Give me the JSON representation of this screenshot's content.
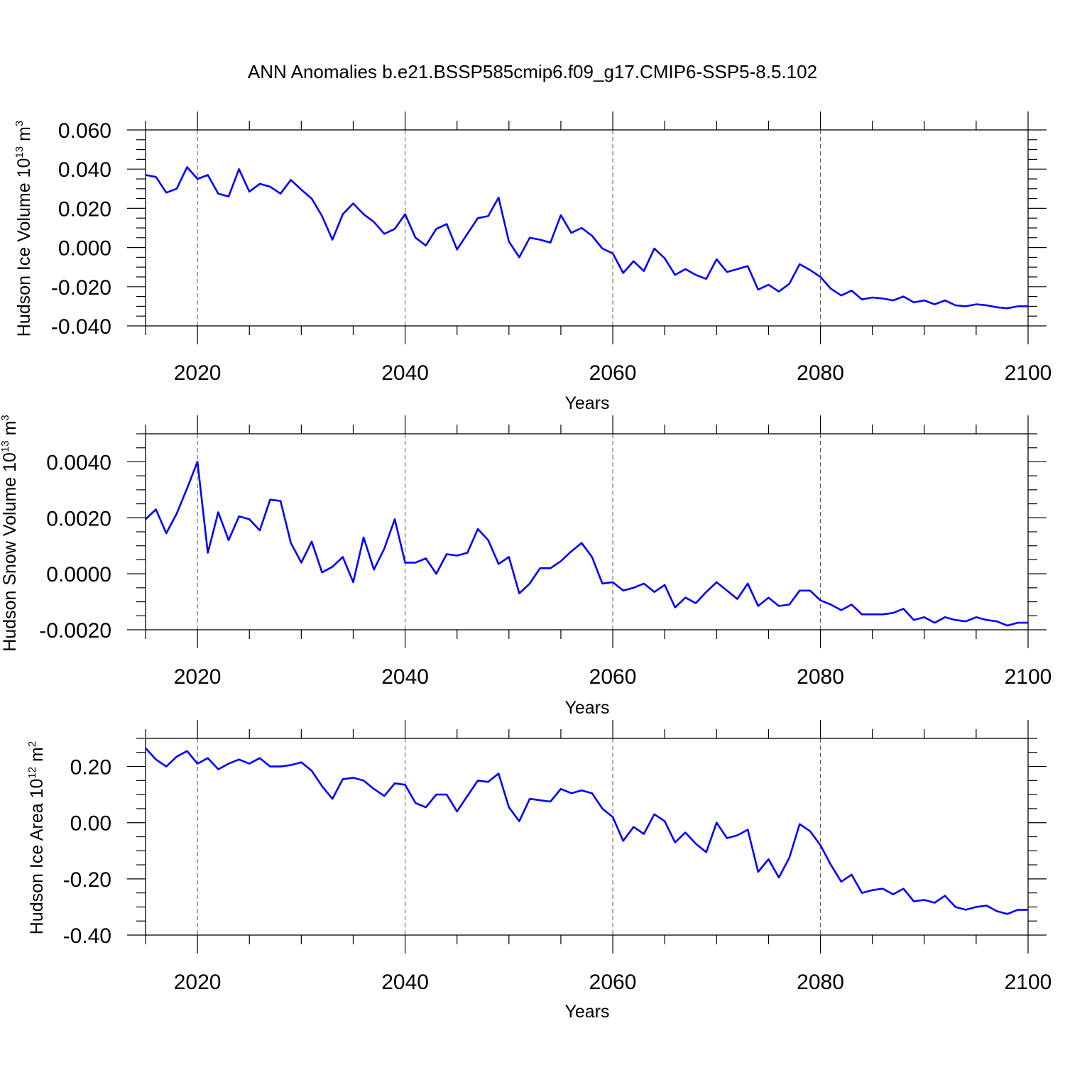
{
  "title": "ANN Anomalies b.e21.BSSP585cmip6.f09_g17.CMIP6-SSP5-8.5.102",
  "line_color": "#0000ff",
  "chart_data": [
    {
      "type": "line",
      "ylabel": "Hudson Ice Volume 10^13 m^3",
      "ylabel_main": "Hudson Ice Volume 10",
      "ylabel_exp": "13",
      "ylabel_unit": " m",
      "ylabel_unit_exp": "3",
      "xlabel": "Years",
      "xlim": [
        2015,
        2100
      ],
      "ylim": [
        -0.04,
        0.06
      ],
      "grid": true,
      "xticks": [
        2020,
        2040,
        2060,
        2080,
        2100
      ],
      "xtick_labels": [
        "2020",
        "2040",
        "2060",
        "2080",
        "2100"
      ],
      "yticks": [
        -0.04,
        -0.02,
        0.0,
        0.02,
        0.04,
        0.06
      ],
      "ytick_labels": [
        "-0.040",
        "-0.020",
        "0.000",
        "0.020",
        "0.040",
        "0.060"
      ],
      "y_minor_step": 0.005,
      "x": [
        2015,
        2016,
        2017,
        2018,
        2019,
        2020,
        2021,
        2022,
        2023,
        2024,
        2025,
        2026,
        2027,
        2028,
        2029,
        2030,
        2031,
        2032,
        2033,
        2034,
        2035,
        2036,
        2037,
        2038,
        2039,
        2040,
        2041,
        2042,
        2043,
        2044,
        2045,
        2046,
        2047,
        2048,
        2049,
        2050,
        2051,
        2052,
        2053,
        2054,
        2055,
        2056,
        2057,
        2058,
        2059,
        2060,
        2061,
        2062,
        2063,
        2064,
        2065,
        2066,
        2067,
        2068,
        2069,
        2070,
        2071,
        2072,
        2073,
        2074,
        2075,
        2076,
        2077,
        2078,
        2079,
        2080,
        2081,
        2082,
        2083,
        2084,
        2085,
        2086,
        2087,
        2088,
        2089,
        2090,
        2091,
        2092,
        2093,
        2094,
        2095,
        2096,
        2097,
        2098,
        2099,
        2100
      ],
      "series": [
        {
          "values": [
            0.037,
            0.036,
            0.028,
            0.03,
            0.041,
            0.035,
            0.037,
            0.0275,
            0.026,
            0.04,
            0.0285,
            0.0325,
            0.031,
            0.0275,
            0.0345,
            0.0295,
            0.025,
            0.016,
            0.004,
            0.017,
            0.0225,
            0.017,
            0.013,
            0.007,
            0.0095,
            0.017,
            0.005,
            0.001,
            0.0095,
            0.012,
            -0.001,
            0.007,
            0.015,
            0.016,
            0.0255,
            0.003,
            -0.005,
            0.005,
            0.004,
            0.0025,
            0.0165,
            0.0075,
            0.01,
            0.006,
            -0.0005,
            -0.003,
            -0.013,
            -0.007,
            -0.012,
            -0.0005,
            -0.0055,
            -0.014,
            -0.011,
            -0.014,
            -0.016,
            -0.006,
            -0.0125,
            -0.011,
            -0.0095,
            -0.0215,
            -0.019,
            -0.0225,
            -0.0185,
            -0.0085,
            -0.0115,
            -0.015,
            -0.021,
            -0.0245,
            -0.022,
            -0.0265,
            -0.0255,
            -0.026,
            -0.027,
            -0.025,
            -0.028,
            -0.027,
            -0.029,
            -0.027,
            -0.0295,
            -0.03,
            -0.029,
            -0.0295,
            -0.0305,
            -0.031,
            -0.03,
            -0.03
          ]
        }
      ]
    },
    {
      "type": "line",
      "ylabel": "Hudson Snow Volume 10^13 m^3",
      "ylabel_main": "Hudson Snow Volume 10",
      "ylabel_exp": "13",
      "ylabel_unit": " m",
      "ylabel_unit_exp": "3",
      "xlabel": "Years",
      "xlim": [
        2015,
        2100
      ],
      "ylim": [
        -0.002,
        0.005
      ],
      "grid": true,
      "xticks": [
        2020,
        2040,
        2060,
        2080,
        2100
      ],
      "xtick_labels": [
        "2020",
        "2040",
        "2060",
        "2080",
        "2100"
      ],
      "yticks": [
        -0.002,
        0.0,
        0.002,
        0.004
      ],
      "ytick_labels": [
        "-0.0020",
        "0.0000",
        "0.0020",
        "0.0040"
      ],
      "y_minor_step": 0.0005,
      "x": [
        2015,
        2016,
        2017,
        2018,
        2019,
        2020,
        2021,
        2022,
        2023,
        2024,
        2025,
        2026,
        2027,
        2028,
        2029,
        2030,
        2031,
        2032,
        2033,
        2034,
        2035,
        2036,
        2037,
        2038,
        2039,
        2040,
        2041,
        2042,
        2043,
        2044,
        2045,
        2046,
        2047,
        2048,
        2049,
        2050,
        2051,
        2052,
        2053,
        2054,
        2055,
        2056,
        2057,
        2058,
        2059,
        2060,
        2061,
        2062,
        2063,
        2064,
        2065,
        2066,
        2067,
        2068,
        2069,
        2070,
        2071,
        2072,
        2073,
        2074,
        2075,
        2076,
        2077,
        2078,
        2079,
        2080,
        2081,
        2082,
        2083,
        2084,
        2085,
        2086,
        2087,
        2088,
        2089,
        2090,
        2091,
        2092,
        2093,
        2094,
        2095,
        2096,
        2097,
        2098,
        2099,
        2100
      ],
      "series": [
        {
          "values": [
            0.00195,
            0.0023,
            0.00145,
            0.00215,
            0.00305,
            0.004,
            0.00075,
            0.0022,
            0.0012,
            0.00205,
            0.00195,
            0.00155,
            0.00265,
            0.0026,
            0.0011,
            0.0004,
            0.00115,
            5e-05,
            0.00025,
            0.0006,
            -0.0003,
            0.0013,
            0.00015,
            0.0009,
            0.00195,
            0.0004,
            0.0004,
            0.00055,
            0.0,
            0.0007,
            0.00065,
            0.00075,
            0.0016,
            0.0012,
            0.00035,
            0.0006,
            -0.0007,
            -0.00035,
            0.0002,
            0.0002,
            0.00045,
            0.0008,
            0.0011,
            0.0006,
            -0.00035,
            -0.0003,
            -0.0006,
            -0.0005,
            -0.00035,
            -0.00065,
            -0.0004,
            -0.0012,
            -0.00085,
            -0.00105,
            -0.00065,
            -0.0003,
            -0.0006,
            -0.0009,
            -0.00035,
            -0.00115,
            -0.00085,
            -0.00115,
            -0.0011,
            -0.0006,
            -0.0006,
            -0.00095,
            -0.0011,
            -0.0013,
            -0.0011,
            -0.00145,
            -0.00145,
            -0.00145,
            -0.0014,
            -0.00125,
            -0.00165,
            -0.00155,
            -0.00175,
            -0.00155,
            -0.00165,
            -0.0017,
            -0.00155,
            -0.00165,
            -0.0017,
            -0.00185,
            -0.00175,
            -0.00175
          ]
        }
      ]
    },
    {
      "type": "line",
      "ylabel": "Hudson Ice Area 10^12 m^2",
      "ylabel_main": "Hudson Ice Area 10",
      "ylabel_exp": "12",
      "ylabel_unit": " m",
      "ylabel_unit_exp": "2",
      "xlabel": "Years",
      "xlim": [
        2015,
        2100
      ],
      "ylim": [
        -0.4,
        0.3
      ],
      "grid": true,
      "xticks": [
        2020,
        2040,
        2060,
        2080,
        2100
      ],
      "xtick_labels": [
        "2020",
        "2040",
        "2060",
        "2080",
        "2100"
      ],
      "yticks": [
        -0.4,
        -0.2,
        0.0,
        0.2
      ],
      "ytick_labels": [
        "-0.40",
        "-0.20",
        "0.00",
        "0.20"
      ],
      "y_minor_step": 0.05,
      "x": [
        2015,
        2016,
        2017,
        2018,
        2019,
        2020,
        2021,
        2022,
        2023,
        2024,
        2025,
        2026,
        2027,
        2028,
        2029,
        2030,
        2031,
        2032,
        2033,
        2034,
        2035,
        2036,
        2037,
        2038,
        2039,
        2040,
        2041,
        2042,
        2043,
        2044,
        2045,
        2046,
        2047,
        2048,
        2049,
        2050,
        2051,
        2052,
        2053,
        2054,
        2055,
        2056,
        2057,
        2058,
        2059,
        2060,
        2061,
        2062,
        2063,
        2064,
        2065,
        2066,
        2067,
        2068,
        2069,
        2070,
        2071,
        2072,
        2073,
        2074,
        2075,
        2076,
        2077,
        2078,
        2079,
        2080,
        2081,
        2082,
        2083,
        2084,
        2085,
        2086,
        2087,
        2088,
        2089,
        2090,
        2091,
        2092,
        2093,
        2094,
        2095,
        2096,
        2097,
        2098,
        2099,
        2100
      ],
      "series": [
        {
          "values": [
            0.265,
            0.225,
            0.2,
            0.235,
            0.255,
            0.21,
            0.23,
            0.19,
            0.21,
            0.225,
            0.21,
            0.23,
            0.2,
            0.2,
            0.205,
            0.215,
            0.185,
            0.13,
            0.085,
            0.155,
            0.16,
            0.15,
            0.12,
            0.095,
            0.14,
            0.135,
            0.07,
            0.055,
            0.1,
            0.1,
            0.04,
            0.095,
            0.15,
            0.145,
            0.175,
            0.055,
            0.005,
            0.085,
            0.08,
            0.075,
            0.12,
            0.105,
            0.115,
            0.105,
            0.05,
            0.02,
            -0.065,
            -0.015,
            -0.04,
            0.03,
            0.005,
            -0.07,
            -0.035,
            -0.075,
            -0.105,
            0.0,
            -0.055,
            -0.045,
            -0.025,
            -0.175,
            -0.13,
            -0.195,
            -0.125,
            -0.005,
            -0.03,
            -0.08,
            -0.15,
            -0.21,
            -0.185,
            -0.25,
            -0.24,
            -0.235,
            -0.255,
            -0.235,
            -0.28,
            -0.275,
            -0.285,
            -0.26,
            -0.3,
            -0.31,
            -0.3,
            -0.295,
            -0.315,
            -0.325,
            -0.31,
            -0.31
          ]
        }
      ]
    }
  ]
}
